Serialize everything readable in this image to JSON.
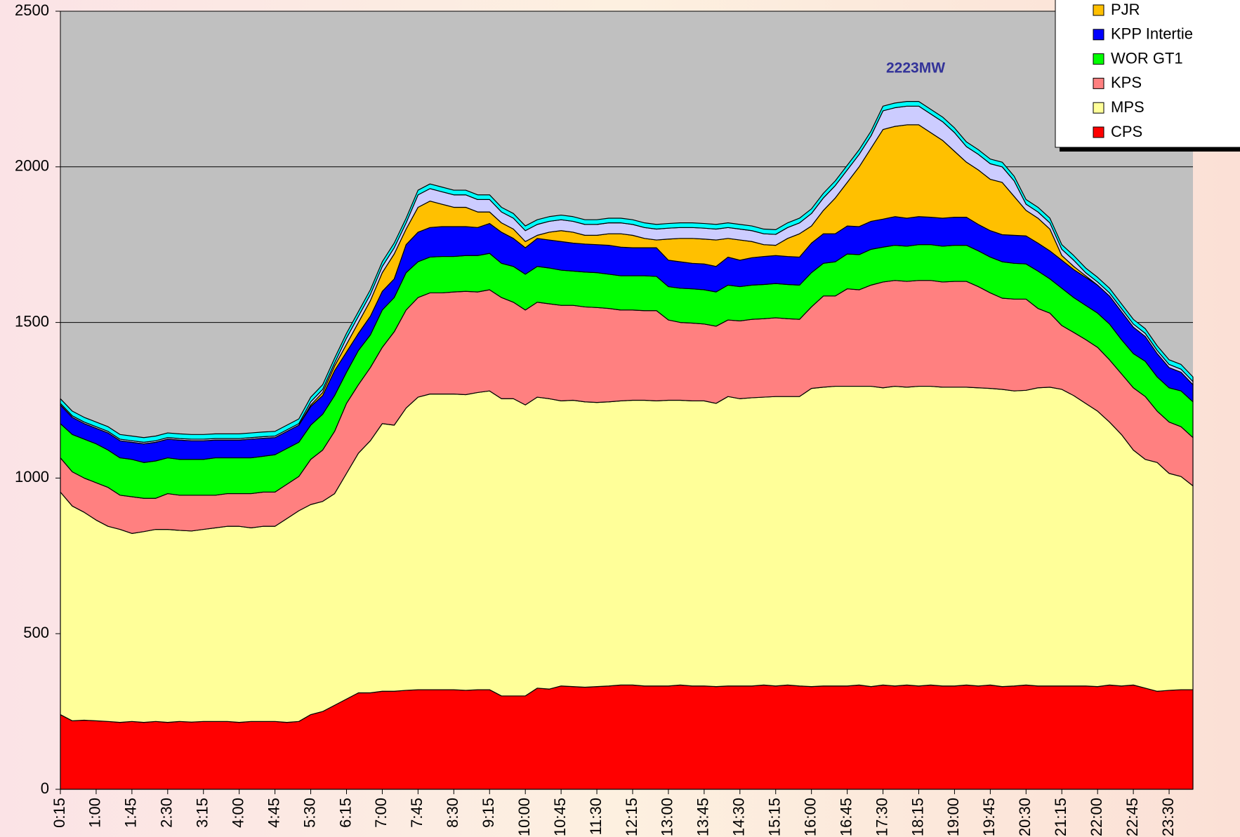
{
  "chart_data": {
    "type": "stacked_area",
    "annotations": [
      "2223MW"
    ],
    "categories": [
      "0:15",
      null,
      null,
      "1:00",
      null,
      null,
      "1:45",
      null,
      null,
      "2:30",
      null,
      null,
      "3:15",
      null,
      null,
      "4:00",
      null,
      null,
      "4:45",
      null,
      null,
      "5:30",
      null,
      null,
      "6:15",
      null,
      null,
      "7:00",
      null,
      null,
      "7:45",
      null,
      null,
      "8:30",
      null,
      null,
      "9:15",
      null,
      null,
      "10:00",
      null,
      null,
      "10:45",
      null,
      null,
      "11:30",
      null,
      null,
      "12:15",
      null,
      null,
      "13:00",
      null,
      null,
      "13:45",
      null,
      null,
      "14:30",
      null,
      null,
      "15:15",
      null,
      null,
      "16:00",
      null,
      null,
      "16:45",
      null,
      null,
      "17:30",
      null,
      null,
      "18:15",
      null,
      null,
      "19:00",
      null,
      null,
      "19:45",
      null,
      null,
      "20:30",
      null,
      null,
      "21:15",
      null,
      null,
      "22:00",
      null,
      null,
      "22:45",
      null,
      null,
      "23:30",
      null,
      null
    ],
    "series": [
      {
        "name": "CPS",
        "color": "#ff0000",
        "values": [
          240,
          220,
          222,
          220,
          218,
          215,
          218,
          215,
          218,
          215,
          218,
          216,
          218,
          218,
          218,
          215,
          218,
          218,
          218,
          215,
          218,
          240,
          250,
          270,
          290,
          310,
          310,
          315,
          315,
          318,
          320,
          320,
          320,
          320,
          318,
          320,
          320,
          300,
          300,
          300,
          325,
          322,
          332,
          330,
          328,
          330,
          332,
          335,
          335,
          332,
          332,
          332,
          335,
          332,
          332,
          330,
          332,
          332,
          332,
          335,
          332,
          335,
          332,
          330,
          332,
          332,
          332,
          335,
          330,
          335,
          332,
          335,
          332,
          335,
          332,
          332,
          335,
          332,
          335,
          330,
          332,
          335,
          332,
          332,
          332,
          332,
          332,
          330,
          335,
          332,
          335,
          325,
          315,
          318,
          320,
          320
        ]
      },
      {
        "name": "MPS",
        "color": "#ffff99",
        "values": [
          715,
          690,
          668,
          645,
          627,
          620,
          604,
          613,
          617,
          620,
          614,
          614,
          617,
          622,
          627,
          630,
          622,
          627,
          627,
          655,
          677,
          675,
          675,
          680,
          725,
          770,
          810,
          860,
          855,
          907,
          940,
          950,
          950,
          950,
          950,
          955,
          960,
          955,
          955,
          935,
          935,
          933,
          916,
          920,
          917,
          913,
          913,
          913,
          915,
          918,
          916,
          918,
          915,
          916,
          916,
          910,
          930,
          923,
          926,
          925,
          930,
          927,
          930,
          958,
          960,
          963,
          963,
          960,
          965,
          955,
          963,
          957,
          963,
          960,
          960,
          960,
          957,
          958,
          953,
          955,
          948,
          947,
          958,
          960,
          953,
          933,
          908,
          885,
          845,
          808,
          755,
          735,
          735,
          697,
          685,
          655
        ]
      },
      {
        "name": "KPS",
        "color": "#ff8080",
        "values": [
          110,
          110,
          110,
          120,
          125,
          110,
          118,
          107,
          100,
          115,
          113,
          115,
          110,
          105,
          105,
          105,
          110,
          110,
          110,
          110,
          110,
          145,
          165,
          200,
          225,
          220,
          235,
          245,
          300,
          315,
          320,
          325,
          325,
          328,
          332,
          323,
          325,
          325,
          310,
          305,
          305,
          305,
          307,
          305,
          305,
          305,
          300,
          292,
          290,
          288,
          290,
          258,
          250,
          250,
          247,
          248,
          246,
          250,
          252,
          252,
          253,
          250,
          248,
          262,
          293,
          290,
          313,
          310,
          325,
          340,
          340,
          340,
          340,
          340,
          338,
          340,
          340,
          325,
          307,
          293,
          295,
          293,
          255,
          238,
          205,
          203,
          205,
          205,
          200,
          195,
          200,
          202,
          165,
          165,
          160,
          155
        ]
      },
      {
        "name": "WOR GT1",
        "color": "#00ff00",
        "values": [
          110,
          120,
          125,
          125,
          120,
          120,
          120,
          115,
          120,
          115,
          115,
          115,
          115,
          120,
          115,
          115,
          115,
          115,
          120,
          115,
          110,
          110,
          115,
          115,
          100,
          110,
          105,
          120,
          110,
          120,
          115,
          115,
          117,
          114,
          115,
          117,
          117,
          110,
          115,
          115,
          115,
          115,
          113,
          110,
          112,
          112,
          110,
          110,
          110,
          112,
          110,
          107,
          110,
          110,
          110,
          110,
          112,
          110,
          110,
          110,
          110,
          110,
          110,
          110,
          105,
          110,
          112,
          113,
          115,
          112,
          113,
          113,
          115,
          115,
          115,
          116,
          116,
          115,
          115,
          117,
          115,
          113,
          120,
          110,
          120,
          112,
          110,
          110,
          115,
          110,
          110,
          113,
          110,
          110,
          115,
          115
        ]
      },
      {
        "name": "KPP Intertie",
        "color": "#0000ff",
        "values": [
          60,
          55,
          50,
          50,
          55,
          55,
          55,
          60,
          60,
          60,
          62,
          60,
          60,
          57,
          57,
          57,
          60,
          58,
          55,
          55,
          55,
          60,
          60,
          80,
          65,
          55,
          60,
          60,
          60,
          90,
          95,
          95,
          96,
          96,
          93,
          90,
          96,
          100,
          90,
          85,
          90,
          90,
          92,
          90,
          90,
          90,
          93,
          92,
          90,
          90,
          92,
          85,
          85,
          82,
          83,
          82,
          90,
          85,
          88,
          90,
          90,
          90,
          90,
          95,
          95,
          90,
          90,
          90,
          90,
          90,
          92,
          90,
          90,
          88,
          90,
          90,
          90,
          85,
          85,
          87,
          90,
          90,
          90,
          90,
          90,
          90,
          90,
          90,
          90,
          90,
          85,
          80,
          75,
          65,
          60,
          55
        ]
      },
      {
        "name": "PJR",
        "color": "#ffc000",
        "values": [
          0,
          0,
          0,
          0,
          0,
          0,
          0,
          0,
          0,
          0,
          0,
          0,
          0,
          0,
          0,
          0,
          0,
          0,
          0,
          0,
          0,
          5,
          10,
          15,
          25,
          35,
          50,
          60,
          80,
          50,
          80,
          85,
          72,
          62,
          62,
          50,
          37,
          30,
          30,
          20,
          10,
          25,
          35,
          35,
          28,
          30,
          37,
          43,
          40,
          30,
          25,
          68,
          75,
          80,
          80,
          85,
          60,
          65,
          52,
          38,
          33,
          58,
          75,
          55,
          75,
          115,
          140,
          192,
          235,
          288,
          290,
          300,
          295,
          272,
          250,
          212,
          177,
          175,
          165,
          168,
          125,
          82,
          80,
          70,
          15,
          10,
          5,
          0,
          0,
          0,
          0,
          0,
          0,
          0,
          0,
          0
        ]
      },
      {
        "color": "#ccccff",
        "values": [
          5,
          5,
          5,
          5,
          5,
          5,
          5,
          5,
          5,
          5,
          5,
          5,
          5,
          5,
          5,
          5,
          5,
          5,
          5,
          5,
          5,
          10,
          10,
          10,
          20,
          20,
          20,
          20,
          20,
          20,
          40,
          40,
          40,
          40,
          40,
          40,
          40,
          35,
          35,
          35,
          35,
          35,
          35,
          35,
          35,
          35,
          35,
          35,
          35,
          35,
          35,
          35,
          35,
          35,
          35,
          35,
          35,
          35,
          35,
          35,
          35,
          35,
          35,
          40,
          40,
          40,
          40,
          40,
          40,
          60,
          60,
          60,
          60,
          60,
          60,
          60,
          50,
          50,
          50,
          50,
          50,
          20,
          20,
          20,
          20,
          20,
          10,
          10,
          10,
          10,
          10,
          10,
          10,
          10,
          10,
          10
        ]
      },
      {
        "color": "#00ffff",
        "values": [
          15,
          15,
          15,
          15,
          15,
          15,
          15,
          15,
          15,
          15,
          15,
          15,
          15,
          15,
          15,
          15,
          15,
          15,
          15,
          15,
          15,
          15,
          15,
          15,
          15,
          15,
          15,
          15,
          15,
          15,
          15,
          15,
          15,
          15,
          15,
          15,
          15,
          15,
          15,
          15,
          15,
          15,
          15,
          15,
          15,
          15,
          15,
          15,
          15,
          15,
          15,
          15,
          15,
          15,
          15,
          15,
          15,
          15,
          15,
          15,
          15,
          15,
          15,
          15,
          15,
          15,
          15,
          15,
          15,
          15,
          15,
          15,
          15,
          15,
          15,
          15,
          15,
          15,
          15,
          15,
          15,
          15,
          15,
          15,
          15,
          15,
          15,
          15,
          15,
          15,
          15,
          15,
          15,
          15,
          15,
          15
        ]
      }
    ],
    "ylim": [
      0,
      2500
    ],
    "yticks": [
      0,
      500,
      1000,
      1500,
      2000,
      2500
    ],
    "grid": true,
    "legend": "top-right"
  }
}
